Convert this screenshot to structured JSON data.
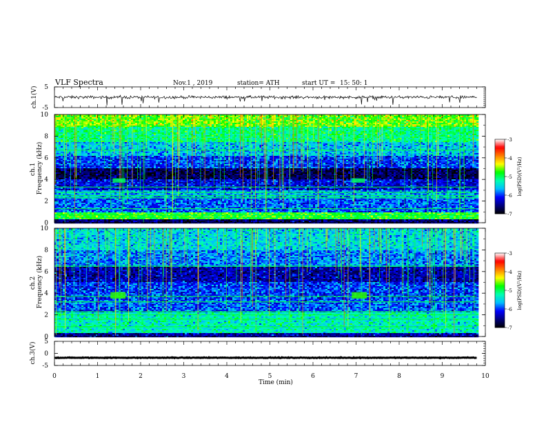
{
  "header": {
    "title": "VLF  Spectra",
    "date": "Nov.1  , 2019",
    "station": "station= ATH",
    "start_label": "start  UT  =",
    "start_time": "15: 50: 1"
  },
  "chart_data": [
    {
      "type": "line",
      "panel": "ch1-waveform",
      "ylabel": "ch.1(V)",
      "ylim": [
        -5,
        5
      ],
      "yticks": [
        "5",
        "-5"
      ],
      "xlim": [
        0,
        10
      ],
      "data_extent_min": [
        0,
        9.8
      ],
      "trace_level_v": 0,
      "trace_spread_v": 1.2,
      "color": "#000000"
    },
    {
      "type": "heatmap",
      "panel": "ch1-spectrogram",
      "ylabel": "ch.1\nFrequency  (kHz)",
      "ylim": [
        0,
        10
      ],
      "yticks": [
        "0",
        "2",
        "4",
        "6",
        "8",
        "10"
      ],
      "xlim": [
        0,
        10
      ],
      "data_extent_min": [
        0,
        9.8
      ],
      "colorbar": {
        "label": "log(PSD)(V²/Hz)",
        "range": [
          -7,
          -3
        ],
        "ticks": [
          "-3",
          "-4",
          "-5",
          "-6",
          "-7"
        ]
      },
      "bands_khz": [
        {
          "range": [
            0,
            0.3
          ],
          "level": -6.6
        },
        {
          "range": [
            0.3,
            0.9
          ],
          "level": -4.8
        },
        {
          "range": [
            0.9,
            2.2
          ],
          "level": -5.9
        },
        {
          "range": [
            2.2,
            3.0
          ],
          "level": -5.7
        },
        {
          "range": [
            3.0,
            4.0
          ],
          "level": -6.2
        },
        {
          "range": [
            4.0,
            5.0
          ],
          "level": -6.7
        },
        {
          "range": [
            5.0,
            6.2
          ],
          "level": -6.0
        },
        {
          "range": [
            6.2,
            7.5
          ],
          "level": -5.6
        },
        {
          "range": [
            7.5,
            8.8
          ],
          "level": -5.1
        },
        {
          "range": [
            8.8,
            10
          ],
          "level": -4.6
        }
      ],
      "lines_khz": [
        0.45,
        0.7,
        1.3,
        2.3,
        2.5,
        2.8,
        3.3,
        6.7
      ],
      "bursts": [
        {
          "t_min": [
            1.35,
            1.65
          ],
          "f_khz": [
            3.7,
            4.1
          ],
          "level": -5.0
        },
        {
          "t_min": [
            6.9,
            7.2
          ],
          "f_khz": [
            3.7,
            4.1
          ],
          "level": -5.0
        }
      ]
    },
    {
      "type": "heatmap",
      "panel": "ch2-spectrogram",
      "ylabel": "ch.2\nFrequency  (kHz)",
      "ylim": [
        0,
        10
      ],
      "yticks": [
        "0",
        "2",
        "4",
        "6",
        "8",
        "10"
      ],
      "xlim": [
        0,
        10
      ],
      "data_extent_min": [
        0,
        9.8
      ],
      "colorbar": {
        "label": "log(PSD)(V²/Hz)",
        "range": [
          -7,
          -3
        ],
        "ticks": [
          "-3",
          "-4",
          "-5",
          "-6",
          "-7"
        ]
      },
      "bands_khz": [
        {
          "range": [
            0,
            0.3
          ],
          "level": -6.4
        },
        {
          "range": [
            0.3,
            2.2
          ],
          "level": -5.3
        },
        {
          "range": [
            2.2,
            3.4
          ],
          "level": -5.9
        },
        {
          "range": [
            3.4,
            5.0
          ],
          "level": -6.0
        },
        {
          "range": [
            5.0,
            6.4
          ],
          "level": -6.4
        },
        {
          "range": [
            6.4,
            8.0
          ],
          "level": -5.8
        },
        {
          "range": [
            8.0,
            10
          ],
          "level": -5.5
        }
      ],
      "lines_khz": [
        0.9,
        1.6,
        2.0,
        2.3,
        3.2,
        3.7,
        6.5
      ],
      "bursts": [
        {
          "t_min": [
            1.3,
            1.65
          ],
          "f_khz": [
            3.5,
            4.1
          ],
          "level": -4.7
        },
        {
          "t_min": [
            6.9,
            7.25
          ],
          "f_khz": [
            3.5,
            4.1
          ],
          "level": -4.7
        }
      ]
    },
    {
      "type": "line",
      "panel": "ch3-waveform",
      "ylabel": "ch.3(V)",
      "ylim": [
        -5,
        5
      ],
      "yticks": [
        "5",
        "0",
        "-5"
      ],
      "xlim": [
        0,
        10
      ],
      "data_extent_min": [
        0,
        9.8
      ],
      "trace_level_v": -1.8,
      "trace_spread_v": 0.25,
      "color": "#000000"
    }
  ],
  "xaxis": {
    "label": "Time  (min)",
    "ticks": [
      "0",
      "1",
      "2",
      "3",
      "4",
      "5",
      "6",
      "7",
      "8",
      "9",
      "10"
    ],
    "range": [
      0,
      10
    ]
  },
  "colormap": [
    "#000000",
    "#00007f",
    "#0000ff",
    "#00bfff",
    "#00ffb0",
    "#00ff00",
    "#ffff00",
    "#ff7f00",
    "#ff0000",
    "#ffffff"
  ]
}
